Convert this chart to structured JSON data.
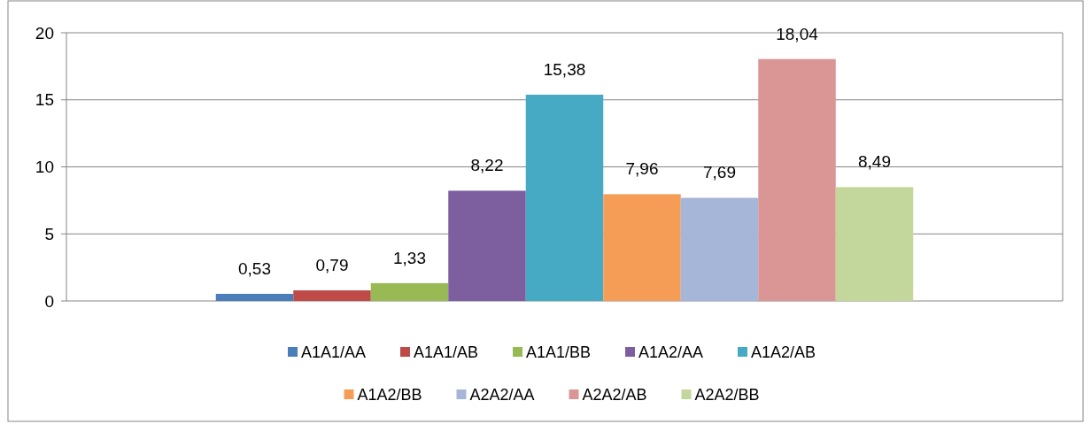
{
  "chart_data": {
    "type": "bar",
    "categories": [
      null
    ],
    "ylim": [
      0,
      20
    ],
    "yticks": [
      0,
      5,
      10,
      15,
      20
    ],
    "grid": "y",
    "legend": "bottom",
    "series": [
      {
        "name": "A1A1/AA",
        "color": "#4a7ebb",
        "values": [
          0.53
        ],
        "value_labels": [
          "0,53"
        ]
      },
      {
        "name": "A1A1/AB",
        "color": "#be4b48",
        "values": [
          0.79
        ],
        "value_labels": [
          "0,79"
        ]
      },
      {
        "name": "A1A1/BB",
        "color": "#98b954",
        "values": [
          1.33
        ],
        "value_labels": [
          "1,33"
        ]
      },
      {
        "name": "A1A2/AA",
        "color": "#7d5fa0",
        "values": [
          8.22
        ],
        "value_labels": [
          "8,22"
        ]
      },
      {
        "name": "A1A2/AB",
        "color": "#46aac5",
        "values": [
          15.38
        ],
        "value_labels": [
          "15,38"
        ]
      },
      {
        "name": "A1A2/BB",
        "color": "#f59d56",
        "values": [
          7.96
        ],
        "value_labels": [
          "7,96"
        ]
      },
      {
        "name": "A2A2/AA",
        "color": "#a5b6d8",
        "values": [
          7.69
        ],
        "value_labels": [
          "7,69"
        ]
      },
      {
        "name": "A2A2/AB",
        "color": "#d99694",
        "values": [
          18.04
        ],
        "value_labels": [
          "18,04"
        ]
      },
      {
        "name": "A2A2/BB",
        "color": "#c3d69b",
        "values": [
          8.49
        ],
        "value_labels": [
          "8,49"
        ]
      }
    ]
  }
}
